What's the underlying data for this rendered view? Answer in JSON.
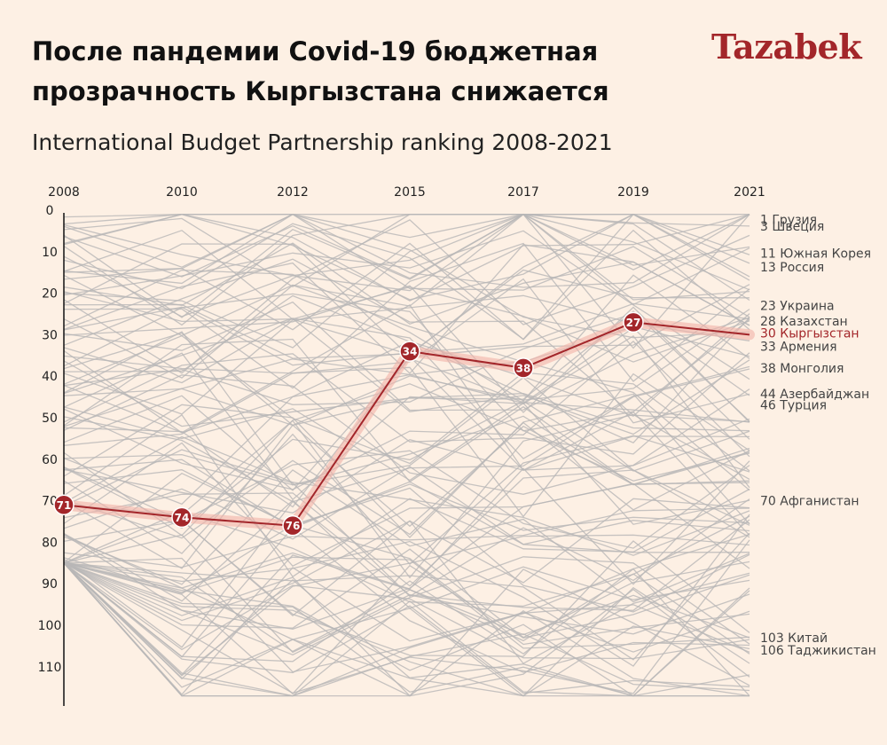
{
  "header": {
    "title": "После пандемии Covid-19 бюджетная прозрачность Кыргызстана снижается",
    "subtitle": "International Budget Partnership ranking 2008-2021",
    "logo": "Tazabek"
  },
  "colors": {
    "background": "#fdf0e4",
    "highlight": "#a3262a",
    "glow": "#f2b3a8",
    "background_lines": "#b8b6b6",
    "label_text": "#444444"
  },
  "chart_data": {
    "type": "line",
    "x": [
      "2008",
      "2010",
      "2012",
      "2015",
      "2017",
      "2019",
      "2021"
    ],
    "yticks": [
      0,
      10,
      20,
      30,
      40,
      50,
      60,
      70,
      80,
      90,
      100,
      110
    ],
    "ylim": [
      0,
      120
    ],
    "y_inverted": true,
    "highlight_series": {
      "name": "Кыргызстан",
      "values": [
        71,
        74,
        76,
        34,
        38,
        27,
        30
      ]
    },
    "end_labels": [
      {
        "rank": 1,
        "text": "1 Грузия"
      },
      {
        "rank": 3,
        "text": "3 Швеция"
      },
      {
        "rank": 11,
        "text": "11 Южная Корея"
      },
      {
        "rank": 13,
        "text": "13 Россия"
      },
      {
        "rank": 23,
        "text": "23 Украина"
      },
      {
        "rank": 28,
        "text": "28 Казахстан"
      },
      {
        "rank": 30,
        "text": "30 Кыргызстан",
        "highlight": true
      },
      {
        "rank": 33,
        "text": "33 Армения"
      },
      {
        "rank": 38,
        "text": "38 Монголия"
      },
      {
        "rank": 44,
        "text": "44 Азербайджан"
      },
      {
        "rank": 46,
        "text": "46 Турция"
      },
      {
        "rank": 70,
        "text": "70  Афганистан"
      },
      {
        "rank": 103,
        "text": "103 Китай"
      },
      {
        "rank": 106,
        "text": "106 Таджикистан"
      }
    ],
    "background_series_count": 117,
    "grid": false
  }
}
